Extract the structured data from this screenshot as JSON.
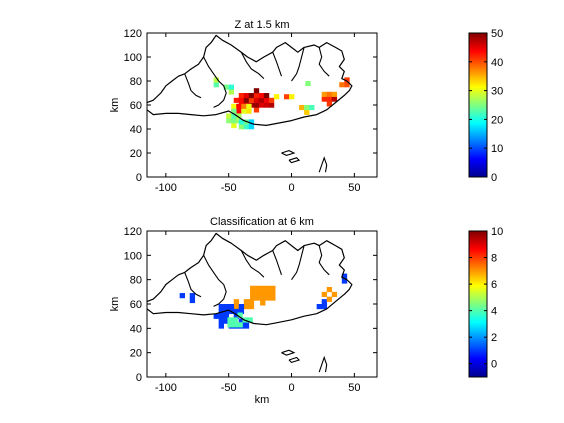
{
  "chart_data": [
    {
      "type": "heatmap",
      "title": "Z at  1.5 km",
      "xlabel": "",
      "ylabel": "km",
      "xlim": [
        -115,
        68
      ],
      "ylim": [
        0,
        120
      ],
      "xticks": [
        -100,
        -50,
        0,
        50
      ],
      "yticks": [
        0,
        20,
        40,
        60,
        80,
        100,
        120
      ],
      "colorbar": {
        "min": 0,
        "max": 50,
        "ticks": [
          0,
          10,
          20,
          30,
          40,
          50
        ]
      },
      "cell_size_km": 4,
      "clusters": [
        {
          "xc": -30,
          "yc": 62,
          "rx": 16,
          "ry": 8,
          "value": 46,
          "spread": 6,
          "density": 0.95
        },
        {
          "xc": -42,
          "yc": 55,
          "rx": 10,
          "ry": 6,
          "value": 36,
          "spread": 8,
          "density": 0.9
        },
        {
          "xc": -48,
          "yc": 47,
          "rx": 8,
          "ry": 6,
          "value": 25,
          "spread": 6,
          "density": 0.8
        },
        {
          "xc": -38,
          "yc": 42,
          "rx": 8,
          "ry": 6,
          "value": 20,
          "spread": 6,
          "density": 0.7
        },
        {
          "xc": -52,
          "yc": 70,
          "rx": 6,
          "ry": 5,
          "value": 24,
          "spread": 6,
          "density": 0.6
        },
        {
          "xc": -8,
          "yc": 65,
          "rx": 6,
          "ry": 4,
          "value": 33,
          "spread": 8,
          "density": 0.7
        },
        {
          "xc": 28,
          "yc": 65,
          "rx": 8,
          "ry": 6,
          "value": 40,
          "spread": 8,
          "density": 0.85
        },
        {
          "xc": 10,
          "yc": 56,
          "rx": 8,
          "ry": 4,
          "value": 28,
          "spread": 8,
          "density": 0.6
        },
        {
          "xc": 40,
          "yc": 77,
          "rx": 6,
          "ry": 6,
          "value": 36,
          "spread": 8,
          "density": 0.8
        },
        {
          "xc": 10,
          "yc": 75,
          "rx": 3,
          "ry": 3,
          "value": 22,
          "spread": 4,
          "density": 0.6
        },
        {
          "xc": -62,
          "yc": 78,
          "rx": 4,
          "ry": 3,
          "value": 25,
          "spread": 4,
          "density": 0.5
        }
      ]
    },
    {
      "type": "heatmap",
      "title": "Classification at  6 km",
      "xlabel": "km",
      "ylabel": "km",
      "xlim": [
        -115,
        68
      ],
      "ylim": [
        0,
        120
      ],
      "xticks": [
        -100,
        -50,
        0,
        50
      ],
      "yticks": [
        0,
        20,
        40,
        60,
        80,
        100,
        120
      ],
      "colorbar": {
        "min": -1,
        "max": 10,
        "ticks": [
          0,
          2,
          4,
          6,
          8,
          10
        ]
      },
      "cell_size_km": 4,
      "clusters": [
        {
          "xc": -25,
          "yc": 66,
          "rx": 12,
          "ry": 7,
          "value": 7,
          "spread": 0,
          "density": 0.9
        },
        {
          "xc": -40,
          "yc": 58,
          "rx": 10,
          "ry": 6,
          "value": 7,
          "spread": 0,
          "density": 0.7
        },
        {
          "xc": -48,
          "yc": 48,
          "rx": 14,
          "ry": 12,
          "value": 1,
          "spread": 0,
          "density": 0.8
        },
        {
          "xc": -45,
          "yc": 45,
          "rx": 10,
          "ry": 8,
          "value": 4,
          "spread": 0,
          "density": 0.3
        },
        {
          "xc": -85,
          "yc": 62,
          "rx": 8,
          "ry": 5,
          "value": 1,
          "spread": 0,
          "density": 0.7
        },
        {
          "xc": 22,
          "yc": 58,
          "rx": 6,
          "ry": 6,
          "value": 1,
          "spread": 0,
          "density": 0.8
        },
        {
          "xc": 28,
          "yc": 66,
          "rx": 4,
          "ry": 4,
          "value": 7,
          "spread": 0,
          "density": 0.6
        },
        {
          "xc": 40,
          "yc": 80,
          "rx": 4,
          "ry": 3,
          "value": 1,
          "spread": 0,
          "density": 0.6
        },
        {
          "xc": -30,
          "yc": 32,
          "rx": 3,
          "ry": 3,
          "value": 3,
          "spread": 0,
          "density": 0.5
        }
      ]
    }
  ]
}
